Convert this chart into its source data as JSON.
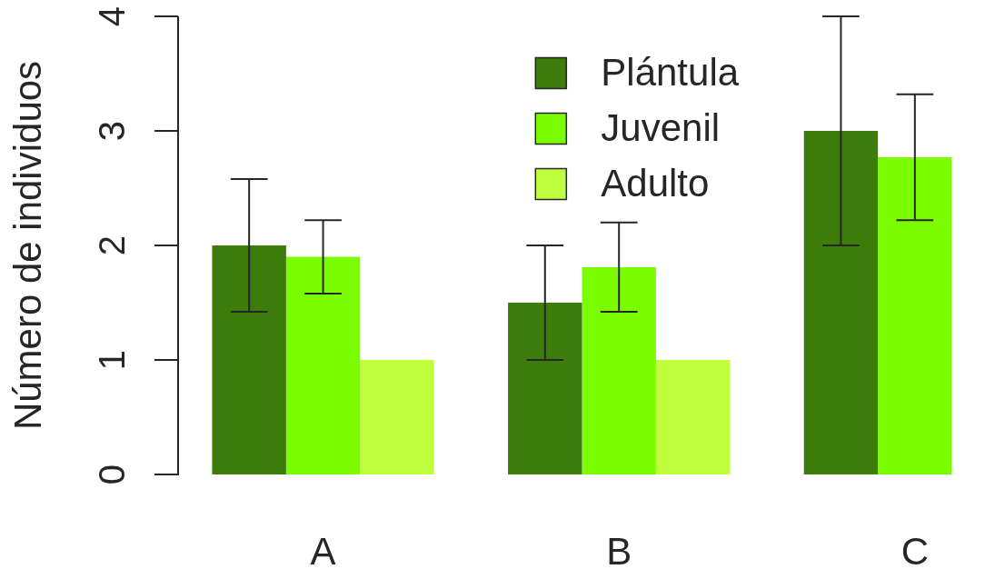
{
  "chart_data": {
    "type": "bar",
    "ylabel": "Número de individuos",
    "categories": [
      "A",
      "B",
      "C"
    ],
    "series": [
      {
        "name": "Plántula",
        "color": "#3d7b0b",
        "values": [
          2,
          1.5,
          3
        ],
        "errors": [
          0.58,
          0.5,
          1
        ]
      },
      {
        "name": "Juvenil",
        "color": "#7cfc00",
        "values": [
          1.9,
          1.81,
          2.77
        ],
        "errors": [
          0.32,
          0.39,
          0.55
        ]
      },
      {
        "name": "Adulto",
        "color": "#c0ff3e",
        "values": [
          1,
          1,
          null
        ]
      }
    ],
    "ylim": [
      0,
      4
    ],
    "yticks": [
      0,
      1,
      2,
      3,
      4
    ],
    "legend": "top"
  }
}
